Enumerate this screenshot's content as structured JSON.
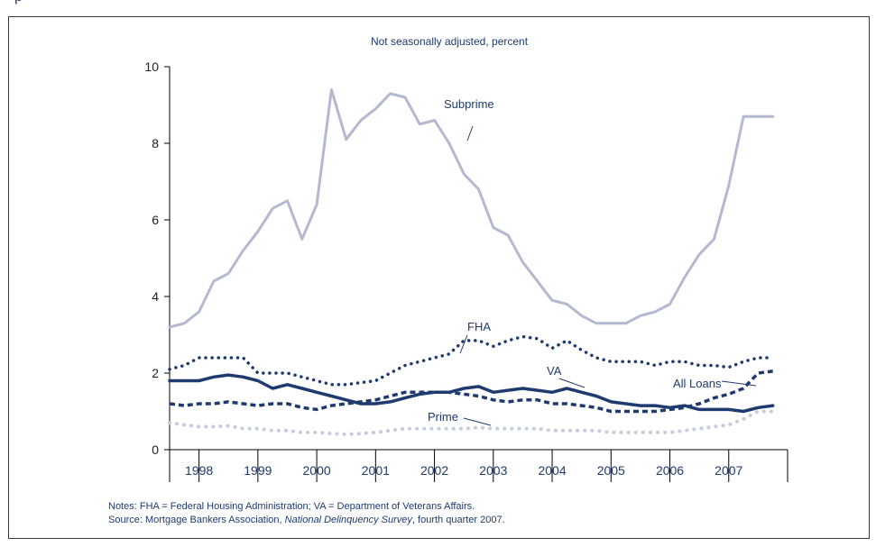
{
  "header_fragment": "p",
  "chart_data": {
    "type": "line",
    "subtitle": "Not seasonally adjusted, percent",
    "ylim": [
      0,
      10
    ],
    "yticks": [
      0,
      2,
      4,
      6,
      8,
      10
    ],
    "xlim": [
      1997.5,
      2008.0
    ],
    "year_labels": [
      "1998",
      "1999",
      "2000",
      "2001",
      "2002",
      "2003",
      "2004",
      "2005",
      "2006",
      "2007"
    ],
    "colors": {
      "subprime": "#b3b9d1",
      "fha": "#1f3a6e",
      "va": "#1f3a6e",
      "all_loans": "#1f3a6e",
      "prime": "#c6cbdd",
      "text": "#1f3a6e",
      "axis": "#000000"
    },
    "x": [
      1997.5,
      1997.75,
      1998.0,
      1998.25,
      1998.5,
      1998.75,
      1999.0,
      1999.25,
      1999.5,
      1999.75,
      2000.0,
      2000.25,
      2000.5,
      2000.75,
      2001.0,
      2001.25,
      2001.5,
      2001.75,
      2002.0,
      2002.25,
      2002.5,
      2002.75,
      2003.0,
      2003.25,
      2003.5,
      2003.75,
      2004.0,
      2004.25,
      2004.5,
      2004.75,
      2005.0,
      2005.25,
      2005.5,
      2005.75,
      2006.0,
      2006.25,
      2006.5,
      2006.75,
      2007.0,
      2007.25,
      2007.5,
      2007.75,
      2008.0
    ],
    "series": [
      {
        "key": "subprime",
        "name": "Subprime",
        "style": "solid",
        "values": [
          3.2,
          3.3,
          3.6,
          4.4,
          4.6,
          5.2,
          5.7,
          6.3,
          6.5,
          5.5,
          6.4,
          9.4,
          8.1,
          8.6,
          8.9,
          9.3,
          9.2,
          8.5,
          8.6,
          8.0,
          7.2,
          6.8,
          5.8,
          5.6,
          4.9,
          4.4,
          3.9,
          3.8,
          3.5,
          3.3,
          3.3,
          3.3,
          3.5,
          3.6,
          3.8,
          4.5,
          5.1,
          5.5,
          6.9,
          8.7,
          8.7,
          8.7,
          8.7
        ]
      },
      {
        "key": "fha",
        "name": "FHA",
        "style": "dotted",
        "values": [
          2.1,
          2.2,
          2.4,
          2.4,
          2.4,
          2.4,
          2.0,
          2.0,
          2.0,
          1.9,
          1.8,
          1.7,
          1.7,
          1.75,
          1.8,
          2.0,
          2.2,
          2.3,
          2.4,
          2.5,
          2.85,
          2.85,
          2.7,
          2.85,
          2.95,
          2.9,
          2.65,
          2.85,
          2.6,
          2.4,
          2.3,
          2.3,
          2.3,
          2.2,
          2.3,
          2.3,
          2.2,
          2.2,
          2.15,
          2.3,
          2.4,
          2.4,
          2.4
        ]
      },
      {
        "key": "va",
        "name": "VA",
        "style": "solid-thick",
        "values": [
          1.8,
          1.8,
          1.8,
          1.9,
          1.95,
          1.9,
          1.8,
          1.6,
          1.7,
          1.6,
          1.5,
          1.4,
          1.3,
          1.2,
          1.2,
          1.25,
          1.35,
          1.45,
          1.5,
          1.5,
          1.6,
          1.65,
          1.5,
          1.55,
          1.6,
          1.55,
          1.5,
          1.6,
          1.5,
          1.4,
          1.25,
          1.2,
          1.15,
          1.15,
          1.1,
          1.15,
          1.05,
          1.05,
          1.05,
          1.0,
          1.1,
          1.15,
          1.15
        ]
      },
      {
        "key": "all_loans",
        "name": "All Loans",
        "style": "dashed",
        "values": [
          1.2,
          1.15,
          1.2,
          1.2,
          1.25,
          1.2,
          1.15,
          1.2,
          1.2,
          1.1,
          1.05,
          1.15,
          1.2,
          1.25,
          1.3,
          1.4,
          1.5,
          1.5,
          1.5,
          1.5,
          1.45,
          1.4,
          1.3,
          1.25,
          1.3,
          1.3,
          1.2,
          1.2,
          1.15,
          1.1,
          1.0,
          1.0,
          1.0,
          1.0,
          1.05,
          1.1,
          1.2,
          1.35,
          1.45,
          1.6,
          2.0,
          2.05,
          2.05
        ]
      },
      {
        "key": "prime",
        "name": "Prime",
        "style": "dotted-light",
        "values": [
          0.7,
          0.65,
          0.6,
          0.6,
          0.62,
          0.55,
          0.55,
          0.5,
          0.5,
          0.45,
          0.45,
          0.42,
          0.4,
          0.42,
          0.45,
          0.5,
          0.55,
          0.55,
          0.55,
          0.55,
          0.55,
          0.58,
          0.55,
          0.55,
          0.55,
          0.55,
          0.5,
          0.5,
          0.5,
          0.5,
          0.45,
          0.45,
          0.45,
          0.45,
          0.45,
          0.5,
          0.55,
          0.6,
          0.65,
          0.8,
          1.0,
          1.0,
          1.0
        ]
      }
    ],
    "annotations": {
      "subprime": "Subprime",
      "fha": "FHA",
      "va": "VA",
      "all_loans": "All Loans",
      "prime": "Prime"
    }
  },
  "notes": {
    "line1": "Notes: FHA = Federal Housing Administration; VA = Department of Veterans Affairs.",
    "line2_prefix": "Source: Mortgage Bankers Association, ",
    "line2_italic": "National Delinquency Survey",
    "line2_suffix": ", fourth quarter 2007."
  }
}
